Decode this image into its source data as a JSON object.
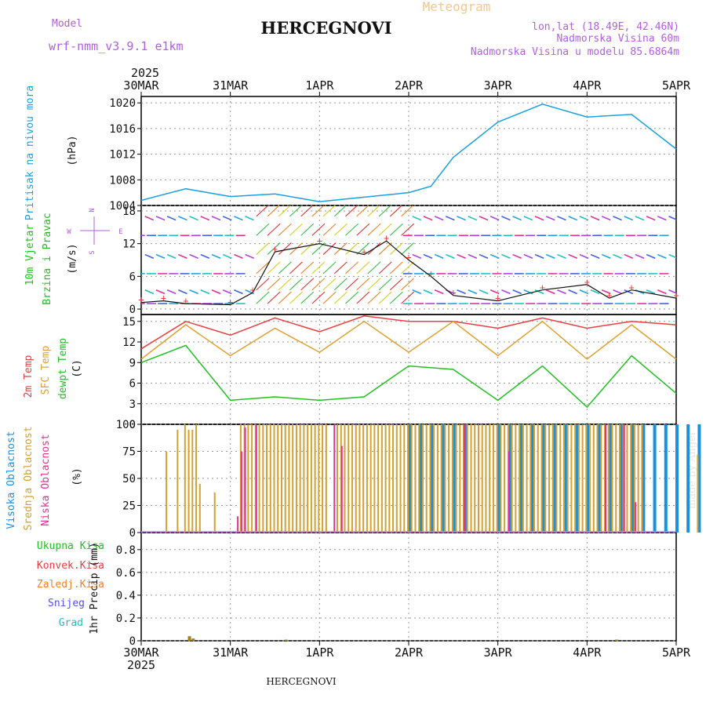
{
  "header": {
    "model_label": "Model",
    "model_name": "wrf-nmm_v3.9.1 e1km",
    "station": "HERCEGNOVI",
    "meteogram": "Meteogram",
    "lonlat": "lon,lat (18.49E, 42.46N)",
    "elevation": "Nadmorska Visina 60m",
    "model_elevation": "Nadmorska Visina u modelu 85.6864m",
    "year": "2025",
    "footer_station": "HERCEGNOVI",
    "credit": "made by Angel"
  },
  "time_axis": {
    "labels": [
      "30MAR",
      "31MAR",
      "1APR",
      "2APR",
      "3APR",
      "4APR",
      "5APR"
    ]
  },
  "colors": {
    "pressure": "#1aa0e0",
    "temp": "#e84040",
    "sfc": "#e0a030",
    "dewpt": "#20c020",
    "high_cloud": "#1a90e0",
    "mid_cloud": "#d4a030",
    "low_cloud": "#e0309a",
    "model": "#b060e0"
  },
  "chart_data": [
    {
      "type": "line",
      "panel": "pressure",
      "ylabel_left": "Pritisak na nivou mora",
      "ylabel_unit": "(hPa)",
      "yticks": [
        "1020",
        "1016",
        "1012",
        "1008",
        "1004"
      ],
      "ylim": [
        1004,
        1021
      ],
      "x": [
        "2025-03-30 00",
        "03-30 12",
        "03-31 00",
        "03-31 12",
        "04-01 00",
        "04-01 12",
        "04-02 00",
        "04-02 06",
        "04-02 12",
        "04-03 00",
        "04-03 12",
        "04-04 00",
        "04-04 12",
        "04-05 00"
      ],
      "values": [
        1004.8,
        1006.6,
        1005.4,
        1005.8,
        1004.6,
        1005.3,
        1006.0,
        1007.0,
        1011.5,
        1017.0,
        1019.8,
        1017.8,
        1018.2,
        1012.8
      ]
    },
    {
      "type": "line",
      "panel": "wind",
      "ylabel_left_1": "10m Vjetar",
      "ylabel_left_2": "Brzina i Pravac",
      "ylabel_unit": "(m/s)",
      "compass_n": "N",
      "compass_w": "W",
      "compass_e": "E",
      "compass_s": "S",
      "yticks": [
        "18",
        "12",
        "6",
        "0"
      ],
      "ylim": [
        -1,
        19
      ],
      "x": [
        "2025-03-30 00",
        "03-30 06",
        "03-30 12",
        "03-31 00",
        "03-31 06",
        "03-31 12",
        "04-01 00",
        "04-01 12",
        "04-01 18",
        "04-02 00",
        "04-02 06",
        "04-02 12",
        "04-03 00",
        "04-03 12",
        "04-04 00",
        "04-04 06",
        "04-04 12",
        "04-05 00"
      ],
      "values": [
        1.2,
        1.5,
        1.0,
        0.8,
        3.0,
        10.5,
        12.0,
        10.0,
        12.5,
        9.0,
        6.0,
        2.5,
        1.5,
        3.5,
        4.5,
        2.0,
        3.5,
        2.0
      ]
    },
    {
      "type": "line",
      "panel": "temperature",
      "ylabel_left_1": "2m Temp",
      "ylabel_left_2": "SFC Temp",
      "ylabel_left_3": "dewpt Temp",
      "ylabel_unit": "(C)",
      "yticks": [
        "15",
        "12",
        "9",
        "6",
        "3",
        "0"
      ],
      "ylim": [
        0,
        16
      ],
      "x": [
        "2025-03-30 00",
        "03-30 12",
        "03-31 00",
        "03-31 12",
        "04-01 00",
        "04-01 12",
        "04-02 00",
        "04-02 12",
        "04-03 00",
        "04-03 12",
        "04-04 00",
        "04-04 12",
        "04-05 00"
      ],
      "series": [
        {
          "name": "2m Temp",
          "values": [
            11.0,
            15.0,
            13.0,
            15.5,
            13.5,
            15.8,
            15.0,
            15.0,
            14.0,
            15.5,
            14.0,
            15.0,
            14.5
          ]
        },
        {
          "name": "SFC Temp",
          "values": [
            9.5,
            14.5,
            10.0,
            14.0,
            10.5,
            15.0,
            10.5,
            15.0,
            10.0,
            15.0,
            9.5,
            14.5,
            9.5
          ]
        },
        {
          "name": "dewpt Temp",
          "values": [
            9.0,
            11.5,
            3.5,
            4.0,
            3.5,
            4.0,
            8.5,
            8.0,
            3.5,
            8.5,
            2.5,
            10.0,
            4.5
          ]
        }
      ]
    },
    {
      "type": "bar",
      "panel": "clouds",
      "ylabel_left_1": "Visoka Oblacnost",
      "ylabel_left_2": "Srednja Oblacnost",
      "ylabel_left_3": "Niska Oblacnost",
      "ylabel_unit": "(%)",
      "yticks": [
        "100",
        "75",
        "50",
        "25",
        "0"
      ],
      "ylim": [
        0,
        100
      ],
      "series": [
        {
          "name": "Visoka Oblacnost",
          "x_hours": [
            72,
            75,
            78,
            81,
            84,
            87,
            96,
            99,
            102,
            105,
            108,
            111,
            114,
            117,
            120,
            123,
            126,
            129,
            132,
            135,
            138,
            141,
            144,
            147,
            150,
            153,
            156,
            159
          ],
          "values": [
            100,
            100,
            100,
            100,
            100,
            100,
            100,
            100,
            100,
            100,
            100,
            100,
            100,
            100,
            100,
            100,
            100,
            100,
            100,
            100,
            100,
            100,
            100,
            100,
            100,
            100,
            100,
            100
          ]
        },
        {
          "name": "Srednja Oblacnost",
          "x_hours": [
            7,
            10,
            12,
            13,
            14,
            15,
            16,
            20,
            27,
            28,
            29,
            30,
            31,
            32,
            33,
            34,
            35,
            36,
            37,
            38,
            39,
            40,
            41,
            42,
            43,
            44,
            45,
            46,
            47,
            48,
            49,
            50,
            53,
            54,
            55,
            56,
            57,
            58,
            59,
            60,
            61,
            62,
            63,
            64,
            65,
            66,
            67,
            68,
            69,
            70,
            71,
            72,
            73,
            74,
            75,
            76,
            77,
            78,
            79,
            80,
            81,
            82,
            83,
            84,
            85,
            86,
            87,
            88,
            89,
            90,
            91,
            92,
            93,
            94,
            95,
            96,
            97,
            98,
            99,
            100,
            101,
            102,
            103,
            104,
            105,
            106,
            107,
            108,
            109,
            110,
            111,
            112,
            113,
            114,
            115,
            116,
            117,
            118,
            119,
            120,
            121,
            122,
            123,
            124,
            125,
            126,
            127,
            128,
            129,
            130,
            131,
            132,
            133,
            134,
            135,
            150
          ],
          "values": [
            75,
            95,
            100,
            95,
            95,
            100,
            45,
            37,
            100,
            100,
            100,
            100,
            100,
            100,
            100,
            100,
            100,
            100,
            100,
            100,
            100,
            100,
            100,
            100,
            100,
            100,
            100,
            100,
            100,
            100,
            100,
            100,
            100,
            100,
            100,
            100,
            100,
            100,
            100,
            100,
            100,
            100,
            100,
            100,
            100,
            100,
            100,
            100,
            100,
            100,
            100,
            100,
            100,
            100,
            100,
            100,
            100,
            100,
            100,
            100,
            100,
            100,
            100,
            100,
            100,
            100,
            100,
            100,
            100,
            100,
            100,
            100,
            100,
            100,
            100,
            100,
            100,
            100,
            100,
            100,
            100,
            100,
            100,
            100,
            100,
            100,
            100,
            100,
            100,
            100,
            100,
            100,
            100,
            100,
            100,
            100,
            100,
            100,
            100,
            100,
            100,
            100,
            100,
            100,
            100,
            100,
            100,
            100,
            100,
            100,
            100,
            100,
            100,
            100,
            100,
            72
          ]
        },
        {
          "name": "Niska Oblacnost",
          "x_hours": [
            26,
            27,
            28,
            31,
            52,
            54,
            87,
            99,
            125,
            130,
            133
          ],
          "values": [
            15,
            75,
            97,
            100,
            100,
            80,
            100,
            75,
            100,
            100,
            28
          ]
        }
      ]
    },
    {
      "type": "bar",
      "panel": "precip",
      "ylabel_left_1": "Ukupna Kisa",
      "ylabel_left_2": "Konvek.Kisa",
      "ylabel_left_3": "Zaledj.Kisa",
      "ylabel_left_4": "Snijeg",
      "ylabel_left_5": "Grad",
      "ylabel_unit": "1hr Precip (mm)",
      "yticks": [
        "0.8",
        "0.6",
        "0.4",
        "0.2",
        "0"
      ],
      "ylim": [
        0,
        0.95
      ],
      "x_hours": [
        13,
        14,
        39,
        128
      ],
      "values": [
        0.04,
        0.02,
        0.01,
        0.01
      ]
    }
  ]
}
